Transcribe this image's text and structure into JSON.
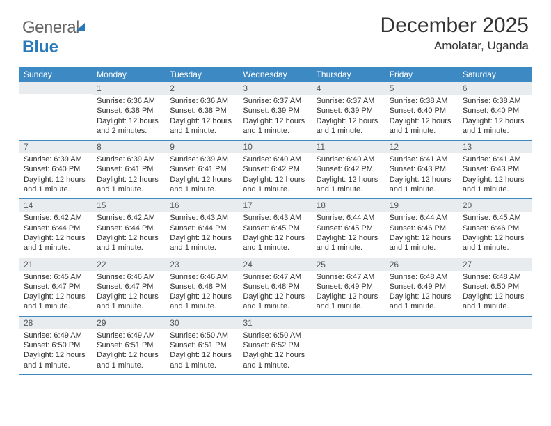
{
  "brand": {
    "part1": "General",
    "part2": "Blue"
  },
  "header": {
    "month_title": "December 2025",
    "location": "Amolatar, Uganda"
  },
  "colors": {
    "header_bg": "#3d89c3",
    "header_text": "#ffffff",
    "daynum_bg": "#e9ecef",
    "rule": "#3d89c3",
    "brand_blue": "#2a7ab9"
  },
  "weekdays": [
    "Sunday",
    "Monday",
    "Tuesday",
    "Wednesday",
    "Thursday",
    "Friday",
    "Saturday"
  ],
  "weeks": [
    [
      {
        "blank": true
      },
      {
        "day": "1",
        "sunrise": "Sunrise: 6:36 AM",
        "sunset": "Sunset: 6:38 PM",
        "daylight1": "Daylight: 12 hours",
        "daylight2": "and 2 minutes."
      },
      {
        "day": "2",
        "sunrise": "Sunrise: 6:36 AM",
        "sunset": "Sunset: 6:38 PM",
        "daylight1": "Daylight: 12 hours",
        "daylight2": "and 1 minute."
      },
      {
        "day": "3",
        "sunrise": "Sunrise: 6:37 AM",
        "sunset": "Sunset: 6:39 PM",
        "daylight1": "Daylight: 12 hours",
        "daylight2": "and 1 minute."
      },
      {
        "day": "4",
        "sunrise": "Sunrise: 6:37 AM",
        "sunset": "Sunset: 6:39 PM",
        "daylight1": "Daylight: 12 hours",
        "daylight2": "and 1 minute."
      },
      {
        "day": "5",
        "sunrise": "Sunrise: 6:38 AM",
        "sunset": "Sunset: 6:40 PM",
        "daylight1": "Daylight: 12 hours",
        "daylight2": "and 1 minute."
      },
      {
        "day": "6",
        "sunrise": "Sunrise: 6:38 AM",
        "sunset": "Sunset: 6:40 PM",
        "daylight1": "Daylight: 12 hours",
        "daylight2": "and 1 minute."
      }
    ],
    [
      {
        "day": "7",
        "sunrise": "Sunrise: 6:39 AM",
        "sunset": "Sunset: 6:40 PM",
        "daylight1": "Daylight: 12 hours",
        "daylight2": "and 1 minute."
      },
      {
        "day": "8",
        "sunrise": "Sunrise: 6:39 AM",
        "sunset": "Sunset: 6:41 PM",
        "daylight1": "Daylight: 12 hours",
        "daylight2": "and 1 minute."
      },
      {
        "day": "9",
        "sunrise": "Sunrise: 6:39 AM",
        "sunset": "Sunset: 6:41 PM",
        "daylight1": "Daylight: 12 hours",
        "daylight2": "and 1 minute."
      },
      {
        "day": "10",
        "sunrise": "Sunrise: 6:40 AM",
        "sunset": "Sunset: 6:42 PM",
        "daylight1": "Daylight: 12 hours",
        "daylight2": "and 1 minute."
      },
      {
        "day": "11",
        "sunrise": "Sunrise: 6:40 AM",
        "sunset": "Sunset: 6:42 PM",
        "daylight1": "Daylight: 12 hours",
        "daylight2": "and 1 minute."
      },
      {
        "day": "12",
        "sunrise": "Sunrise: 6:41 AM",
        "sunset": "Sunset: 6:43 PM",
        "daylight1": "Daylight: 12 hours",
        "daylight2": "and 1 minute."
      },
      {
        "day": "13",
        "sunrise": "Sunrise: 6:41 AM",
        "sunset": "Sunset: 6:43 PM",
        "daylight1": "Daylight: 12 hours",
        "daylight2": "and 1 minute."
      }
    ],
    [
      {
        "day": "14",
        "sunrise": "Sunrise: 6:42 AM",
        "sunset": "Sunset: 6:44 PM",
        "daylight1": "Daylight: 12 hours",
        "daylight2": "and 1 minute."
      },
      {
        "day": "15",
        "sunrise": "Sunrise: 6:42 AM",
        "sunset": "Sunset: 6:44 PM",
        "daylight1": "Daylight: 12 hours",
        "daylight2": "and 1 minute."
      },
      {
        "day": "16",
        "sunrise": "Sunrise: 6:43 AM",
        "sunset": "Sunset: 6:44 PM",
        "daylight1": "Daylight: 12 hours",
        "daylight2": "and 1 minute."
      },
      {
        "day": "17",
        "sunrise": "Sunrise: 6:43 AM",
        "sunset": "Sunset: 6:45 PM",
        "daylight1": "Daylight: 12 hours",
        "daylight2": "and 1 minute."
      },
      {
        "day": "18",
        "sunrise": "Sunrise: 6:44 AM",
        "sunset": "Sunset: 6:45 PM",
        "daylight1": "Daylight: 12 hours",
        "daylight2": "and 1 minute."
      },
      {
        "day": "19",
        "sunrise": "Sunrise: 6:44 AM",
        "sunset": "Sunset: 6:46 PM",
        "daylight1": "Daylight: 12 hours",
        "daylight2": "and 1 minute."
      },
      {
        "day": "20",
        "sunrise": "Sunrise: 6:45 AM",
        "sunset": "Sunset: 6:46 PM",
        "daylight1": "Daylight: 12 hours",
        "daylight2": "and 1 minute."
      }
    ],
    [
      {
        "day": "21",
        "sunrise": "Sunrise: 6:45 AM",
        "sunset": "Sunset: 6:47 PM",
        "daylight1": "Daylight: 12 hours",
        "daylight2": "and 1 minute."
      },
      {
        "day": "22",
        "sunrise": "Sunrise: 6:46 AM",
        "sunset": "Sunset: 6:47 PM",
        "daylight1": "Daylight: 12 hours",
        "daylight2": "and 1 minute."
      },
      {
        "day": "23",
        "sunrise": "Sunrise: 6:46 AM",
        "sunset": "Sunset: 6:48 PM",
        "daylight1": "Daylight: 12 hours",
        "daylight2": "and 1 minute."
      },
      {
        "day": "24",
        "sunrise": "Sunrise: 6:47 AM",
        "sunset": "Sunset: 6:48 PM",
        "daylight1": "Daylight: 12 hours",
        "daylight2": "and 1 minute."
      },
      {
        "day": "25",
        "sunrise": "Sunrise: 6:47 AM",
        "sunset": "Sunset: 6:49 PM",
        "daylight1": "Daylight: 12 hours",
        "daylight2": "and 1 minute."
      },
      {
        "day": "26",
        "sunrise": "Sunrise: 6:48 AM",
        "sunset": "Sunset: 6:49 PM",
        "daylight1": "Daylight: 12 hours",
        "daylight2": "and 1 minute."
      },
      {
        "day": "27",
        "sunrise": "Sunrise: 6:48 AM",
        "sunset": "Sunset: 6:50 PM",
        "daylight1": "Daylight: 12 hours",
        "daylight2": "and 1 minute."
      }
    ],
    [
      {
        "day": "28",
        "sunrise": "Sunrise: 6:49 AM",
        "sunset": "Sunset: 6:50 PM",
        "daylight1": "Daylight: 12 hours",
        "daylight2": "and 1 minute."
      },
      {
        "day": "29",
        "sunrise": "Sunrise: 6:49 AM",
        "sunset": "Sunset: 6:51 PM",
        "daylight1": "Daylight: 12 hours",
        "daylight2": "and 1 minute."
      },
      {
        "day": "30",
        "sunrise": "Sunrise: 6:50 AM",
        "sunset": "Sunset: 6:51 PM",
        "daylight1": "Daylight: 12 hours",
        "daylight2": "and 1 minute."
      },
      {
        "day": "31",
        "sunrise": "Sunrise: 6:50 AM",
        "sunset": "Sunset: 6:52 PM",
        "daylight1": "Daylight: 12 hours",
        "daylight2": "and 1 minute."
      },
      {
        "blank": true
      },
      {
        "blank": true
      },
      {
        "blank": true
      }
    ]
  ]
}
